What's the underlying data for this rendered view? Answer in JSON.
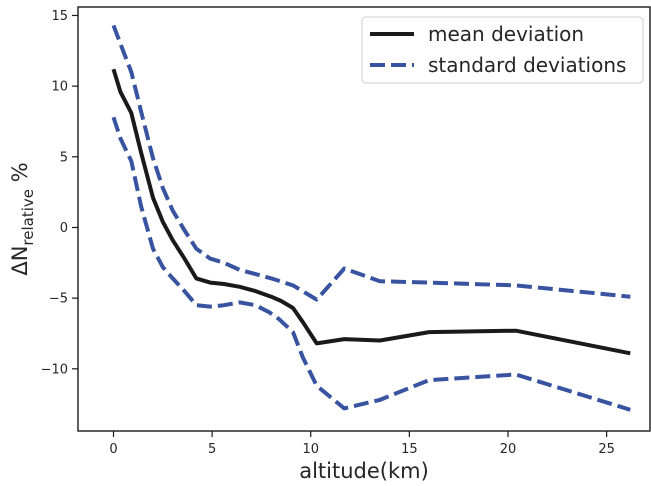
{
  "chart_data": {
    "type": "line",
    "xlabel": "altitude(km)",
    "ylabel_base": "ΔN",
    "ylabel_sub": "relative",
    "ylabel_suffix": " %",
    "xlim": [
      -1.8,
      27.2
    ],
    "ylim": [
      -14.4,
      15.6
    ],
    "x_ticks": [
      0,
      5,
      10,
      15,
      20,
      25
    ],
    "y_ticks": [
      15,
      10,
      5,
      0,
      -5,
      -10
    ],
    "x_tick_labels": [
      "0",
      "5",
      "10",
      "15",
      "20",
      "25"
    ],
    "y_tick_labels": [
      "15",
      "10",
      "5",
      "0",
      "−5",
      "−10"
    ],
    "grid": false,
    "legend_position": "top-right",
    "series": [
      {
        "name": "mean deviation",
        "style": "solid",
        "color": "#1a1a1a",
        "x": [
          0,
          0.35,
          0.9,
          1.4,
          2.0,
          2.5,
          3.0,
          3.6,
          4.2,
          4.9,
          5.6,
          6.4,
          7.2,
          8.0,
          8.5,
          9.1,
          9.6,
          10.3,
          11.7,
          13.5,
          16.0,
          20.4,
          26.2
        ],
        "y": [
          11.2,
          9.6,
          8.1,
          5.3,
          2.1,
          0.4,
          -0.9,
          -2.2,
          -3.6,
          -3.9,
          -4.0,
          -4.2,
          -4.5,
          -4.9,
          -5.2,
          -5.7,
          -6.7,
          -8.2,
          -7.9,
          -8.0,
          -7.4,
          -7.3,
          -8.9
        ]
      },
      {
        "name": "standard deviations",
        "style": "dashed",
        "color": "#3853a0",
        "x": [
          0,
          0.35,
          0.9,
          1.4,
          2.0,
          2.5,
          3.0,
          3.6,
          4.2,
          4.9,
          5.6,
          6.4,
          7.2,
          8.0,
          9.1,
          10.3,
          11.7,
          13.5,
          16.0,
          20.4,
          26.2
        ],
        "y": [
          14.3,
          13.0,
          11.0,
          8.2,
          4.9,
          2.8,
          1.2,
          -0.2,
          -1.5,
          -2.2,
          -2.5,
          -3.0,
          -3.3,
          -3.6,
          -4.1,
          -5.1,
          -2.9,
          -3.8,
          -3.9,
          -4.1,
          -4.9
        ]
      },
      {
        "name": "",
        "style": "dashed",
        "color": "#3853a0",
        "x": [
          0,
          0.35,
          0.9,
          1.4,
          2.0,
          2.5,
          3.0,
          3.6,
          4.2,
          4.9,
          5.6,
          6.4,
          7.2,
          7.9,
          8.4,
          9.1,
          9.6,
          10.3,
          11.7,
          13.5,
          16.0,
          20.4,
          26.2
        ],
        "y": [
          7.8,
          6.3,
          4.7,
          1.5,
          -1.5,
          -2.8,
          -3.6,
          -4.5,
          -5.5,
          -5.6,
          -5.5,
          -5.3,
          -5.5,
          -6.0,
          -6.5,
          -7.4,
          -9.2,
          -11.2,
          -12.8,
          -12.2,
          -10.8,
          -10.4,
          -12.9
        ]
      }
    ]
  }
}
